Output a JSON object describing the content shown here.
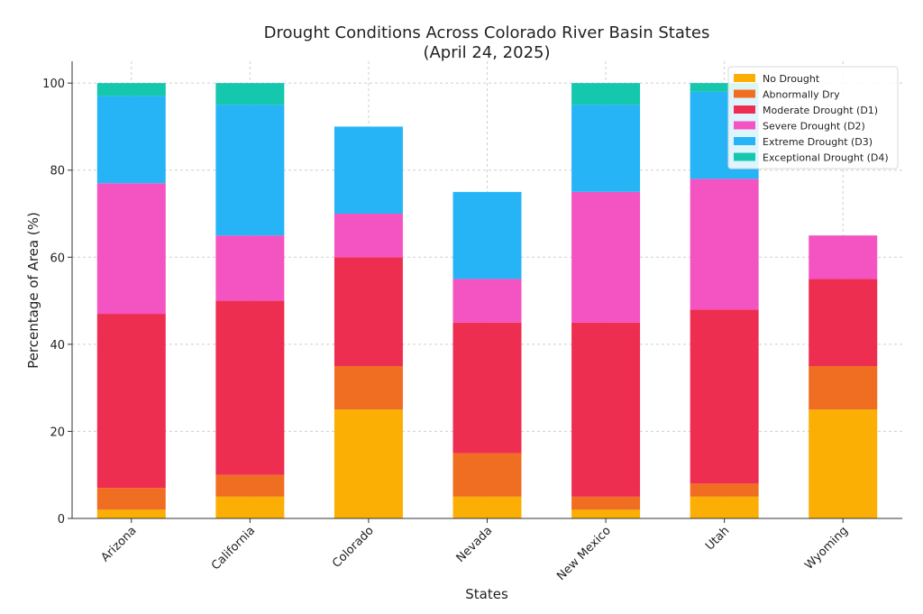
{
  "chart_data": {
    "type": "bar",
    "stacked": true,
    "title": "Drought Conditions Across Colorado River Basin States",
    "subtitle": "(April 24, 2025)",
    "xlabel": "States",
    "ylabel": "Percentage of Area (%)",
    "ylim": [
      0,
      105
    ],
    "yticks": [
      0,
      20,
      40,
      60,
      80,
      100
    ],
    "grid": true,
    "legend_position": "top-right",
    "categories": [
      "Arizona",
      "California",
      "Colorado",
      "Nevada",
      "New Mexico",
      "Utah",
      "Wyoming"
    ],
    "series": [
      {
        "name": "No Drought",
        "color": "#FBAF05",
        "values": [
          2,
          5,
          25,
          5,
          2,
          5,
          25
        ]
      },
      {
        "name": "Abnormally Dry",
        "color": "#F06E21",
        "values": [
          5,
          5,
          10,
          10,
          3,
          3,
          10
        ]
      },
      {
        "name": "Moderate Drought (D1)",
        "color": "#EE2E51",
        "values": [
          40,
          40,
          25,
          30,
          40,
          40,
          20
        ]
      },
      {
        "name": "Severe Drought (D2)",
        "color": "#F454C2",
        "values": [
          30,
          15,
          10,
          10,
          30,
          30,
          10
        ]
      },
      {
        "name": "Extreme Drought (D3)",
        "color": "#27B4F7",
        "values": [
          20,
          30,
          20,
          20,
          20,
          20,
          0
        ]
      },
      {
        "name": "Exceptional Drought (D4)",
        "color": "#14C7AD",
        "values": [
          3,
          5,
          0,
          0,
          5,
          2,
          0
        ]
      }
    ]
  }
}
